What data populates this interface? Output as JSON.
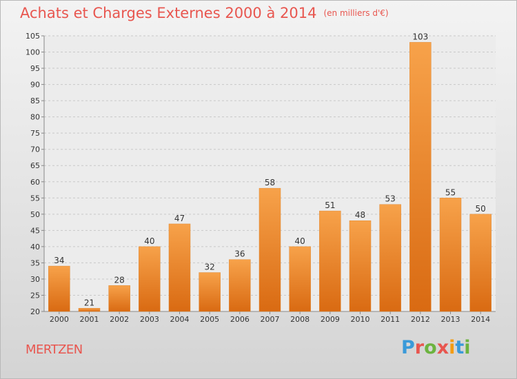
{
  "title": "Achats et Charges Externes 2000 à 2014",
  "unit": "(en milliers d'€)",
  "location": "MERTZEN",
  "logo": {
    "text": "Proxiti",
    "letter_colors": [
      "#3a9ad9",
      "#e8564f",
      "#6cb33f",
      "#e8564f",
      "#f39c12",
      "#3a9ad9",
      "#6cb33f"
    ]
  },
  "colors": {
    "accent": "#e8564f",
    "bar_light": "#f7a24a",
    "bar_dark": "#d96a12",
    "grid": "#c8c8c8",
    "axis_text": "#333333"
  },
  "chart_data": {
    "type": "bar",
    "title": "Achats et Charges Externes 2000 à 2014",
    "subtitle": "(en milliers d'€)",
    "categories": [
      "2000",
      "2001",
      "2002",
      "2003",
      "2004",
      "2005",
      "2006",
      "2007",
      "2008",
      "2009",
      "2010",
      "2011",
      "2012",
      "2013",
      "2014"
    ],
    "values": [
      34,
      21,
      28,
      40,
      47,
      32,
      36,
      58,
      40,
      51,
      48,
      53,
      103,
      55,
      50
    ],
    "ylim": [
      20,
      105
    ],
    "yticks": [
      20,
      25,
      30,
      35,
      40,
      45,
      50,
      55,
      60,
      65,
      70,
      75,
      80,
      85,
      90,
      95,
      100,
      105
    ],
    "grid": true,
    "xlabel": "",
    "ylabel": ""
  }
}
